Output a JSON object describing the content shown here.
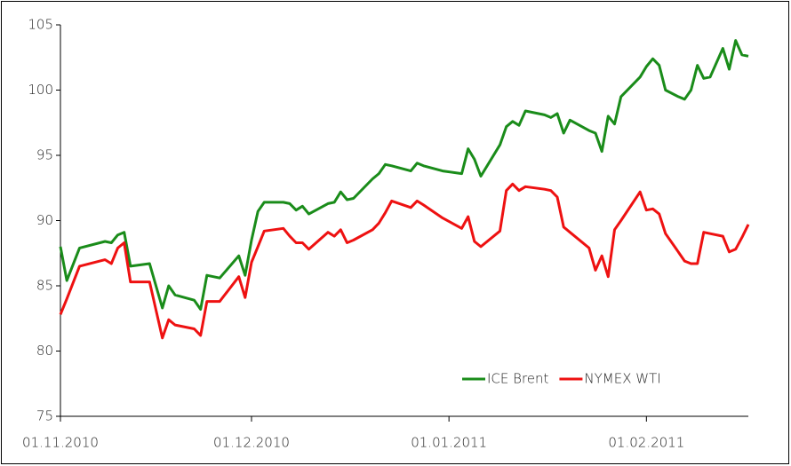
{
  "chart_data": {
    "type": "line",
    "x": [
      "2010-11-01",
      "2010-11-02",
      "2010-11-04",
      "2010-11-08",
      "2010-11-09",
      "2010-11-10",
      "2010-11-11",
      "2010-11-12",
      "2010-11-15",
      "2010-11-17",
      "2010-11-18",
      "2010-11-19",
      "2010-11-22",
      "2010-11-23",
      "2010-11-24",
      "2010-11-26",
      "2010-11-29",
      "2010-11-30",
      "2010-12-01",
      "2010-12-02",
      "2010-12-03",
      "2010-12-06",
      "2010-12-07",
      "2010-12-08",
      "2010-12-09",
      "2010-12-10",
      "2010-12-13",
      "2010-12-14",
      "2010-12-15",
      "2010-12-16",
      "2010-12-17",
      "2010-12-20",
      "2010-12-21",
      "2010-12-22",
      "2010-12-23",
      "2010-12-26",
      "2010-12-27",
      "2010-12-28",
      "2010-12-31",
      "2011-01-03",
      "2011-01-04",
      "2011-01-05",
      "2011-01-06",
      "2011-01-09",
      "2011-01-10",
      "2011-01-11",
      "2011-01-12",
      "2011-01-13",
      "2011-01-16",
      "2011-01-17",
      "2011-01-18",
      "2011-01-19",
      "2011-01-20",
      "2011-01-23",
      "2011-01-24",
      "2011-01-25",
      "2011-01-26",
      "2011-01-27",
      "2011-01-28",
      "2011-01-31",
      "2011-02-01",
      "2011-02-02",
      "2011-02-03",
      "2011-02-04",
      "2011-02-06",
      "2011-02-07",
      "2011-02-08",
      "2011-02-09",
      "2011-02-10",
      "2011-02-11",
      "2011-02-13",
      "2011-02-14",
      "2011-02-15",
      "2011-02-16",
      "2011-02-17"
    ],
    "series": [
      {
        "name": "ICE Brent",
        "color": "#1a8c1a",
        "values": [
          88.0,
          85.4,
          87.9,
          88.4,
          88.3,
          88.9,
          89.1,
          86.5,
          86.7,
          83.3,
          85.0,
          84.3,
          83.9,
          83.2,
          85.8,
          85.6,
          87.3,
          85.8,
          88.5,
          90.7,
          91.4,
          91.4,
          91.3,
          90.8,
          91.1,
          90.5,
          91.3,
          91.4,
          92.2,
          91.6,
          91.7,
          93.2,
          93.6,
          94.3,
          94.2,
          93.8,
          94.4,
          94.2,
          93.8,
          93.6,
          95.5,
          94.7,
          93.4,
          95.8,
          97.2,
          97.6,
          97.3,
          98.4,
          98.1,
          97.9,
          98.2,
          96.7,
          97.7,
          96.9,
          96.7,
          95.3,
          98.0,
          97.4,
          99.5,
          101.0,
          101.8,
          102.4,
          101.9,
          100.0,
          99.5,
          99.3,
          100.0,
          101.9,
          100.9,
          101.0,
          103.2,
          101.6,
          103.8,
          102.7,
          102.6
        ]
      },
      {
        "name": "NYMEX WTI",
        "color": "#ee1111",
        "values": [
          82.8,
          84.0,
          86.5,
          87.0,
          86.7,
          87.9,
          88.3,
          85.3,
          85.3,
          81.0,
          82.4,
          82.0,
          81.7,
          81.2,
          83.8,
          83.8,
          85.7,
          84.1,
          86.8,
          88.0,
          89.2,
          89.4,
          88.8,
          88.3,
          88.3,
          87.8,
          89.1,
          88.8,
          89.3,
          88.3,
          88.5,
          89.3,
          89.8,
          90.6,
          91.5,
          91.0,
          91.5,
          91.2,
          90.2,
          89.4,
          90.3,
          88.4,
          88.0,
          89.2,
          92.3,
          92.8,
          92.3,
          92.6,
          92.4,
          92.3,
          91.8,
          89.5,
          89.1,
          87.9,
          86.2,
          87.3,
          85.7,
          89.3,
          90.0,
          92.2,
          90.8,
          90.9,
          90.5,
          89.0,
          87.6,
          86.9,
          86.7,
          86.7,
          89.1,
          89.0,
          88.8,
          87.6,
          87.8,
          88.7,
          89.7
        ]
      }
    ],
    "xlim": [
      "2010-11-01",
      "2011-02-17"
    ],
    "xticks": [
      {
        "value": "2010-11-01",
        "label": "01.11.2010"
      },
      {
        "value": "2010-12-01",
        "label": "01.12.2010"
      },
      {
        "value": "2011-01-01",
        "label": "01.01.2011"
      },
      {
        "value": "2011-02-01",
        "label": "01.02.2011"
      }
    ],
    "ylim": [
      75,
      105
    ],
    "yticks": [
      75,
      80,
      85,
      90,
      95,
      100,
      105
    ],
    "legend": "lower right"
  }
}
